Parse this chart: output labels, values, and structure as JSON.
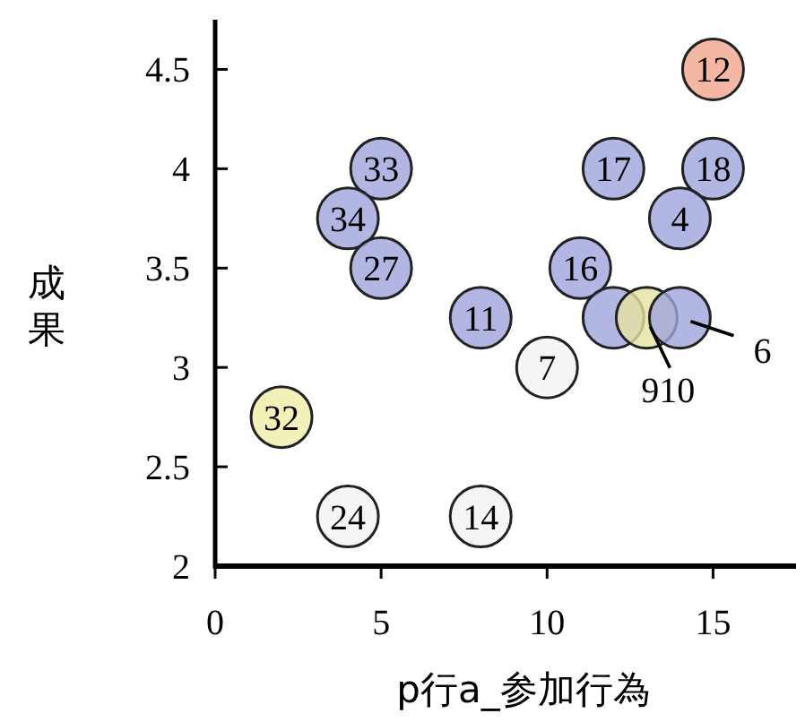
{
  "chart_data": {
    "type": "scatter",
    "xlabel": "p行a_参加行為",
    "ylabel": "成果",
    "x": [
      15,
      5,
      4,
      5,
      12,
      15,
      14,
      11,
      8,
      10,
      12,
      13,
      14,
      2,
      4,
      8
    ],
    "values": [
      4.5,
      4,
      3.75,
      3.5,
      4,
      4,
      3.75,
      3.5,
      3.25,
      3,
      3.25,
      3.25,
      3.25,
      2.75,
      2.25,
      2.25
    ],
    "colors": [
      "#f0a58c",
      "#9fa4dc",
      "#9fa4dc",
      "#9fa4dc",
      "#9fa4dc",
      "#9fa4dc",
      "#9fa4dc",
      "#9fa4dc",
      "#9fa4dc",
      "#f2f2f2",
      "#9fa4dc",
      "#e6e3a0",
      "#9fa4dc",
      "#eeeda8",
      "#f2f2f2",
      "#f2f2f2"
    ],
    "annotations": [
      {
        "text": "12",
        "x": 15,
        "y": 4.5
      },
      {
        "text": "33",
        "x": 5,
        "y": 4
      },
      {
        "text": "34",
        "x": 4,
        "y": 3.75
      },
      {
        "text": "27",
        "x": 5,
        "y": 3.5
      },
      {
        "text": "17",
        "x": 12,
        "y": 4
      },
      {
        "text": "18",
        "x": 15,
        "y": 4
      },
      {
        "text": "4",
        "x": 14,
        "y": 3.75
      },
      {
        "text": "16",
        "x": 11,
        "y": 3.5
      },
      {
        "text": "11",
        "x": 8,
        "y": 3.25
      },
      {
        "text": "7",
        "x": 10,
        "y": 3
      },
      {
        "text": "910",
        "x": 13,
        "y": 3.25
      },
      {
        "text": "6",
        "x": 14,
        "y": 3.25
      },
      {
        "text": "32",
        "x": 2,
        "y": 2.75
      },
      {
        "text": "24",
        "x": 4,
        "y": 2.25
      },
      {
        "text": "14",
        "x": 8,
        "y": 2.25
      }
    ],
    "xlim": [
      0,
      17.5
    ],
    "ylim": [
      2,
      4.75
    ],
    "xticks": [
      0,
      5,
      10,
      15
    ],
    "yticks": [
      2,
      {
        "value": 2.5,
        "label": "2.5"
      },
      3,
      {
        "value": 3.5,
        "label": "3.5"
      },
      4,
      {
        "value": 4.5,
        "label": "4.5"
      }
    ],
    "marker": "circle",
    "grid": false
  }
}
